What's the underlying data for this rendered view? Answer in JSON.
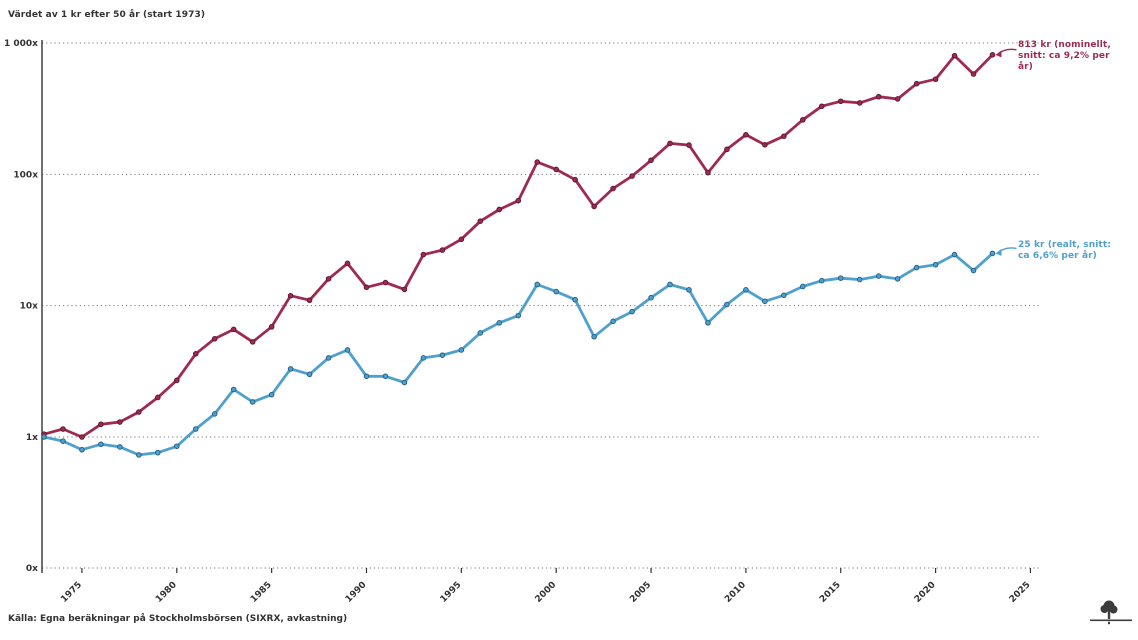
{
  "title": "Värdet av 1 kr efter 50 år (start 1973)",
  "source": "Källa: Egna beräkningar på Stockholmsbörsen (SIXRX, avkastning)",
  "colors": {
    "nominal": "#9e2b4f",
    "nominal_edge": "#5f1a30",
    "real": "#4fa0cd",
    "real_edge": "#27648a",
    "axis": "#333333",
    "grid": "#777777",
    "text": "#333333"
  },
  "annotations": {
    "nominal": {
      "lines": [
        "813 kr (nominellt,",
        "snitt: ca 9,2% per",
        "år)"
      ]
    },
    "real": {
      "lines": [
        "25 kr (realt, snitt:",
        "ca 6,6% per år)"
      ]
    }
  },
  "chart_data": {
    "type": "line",
    "title": "Värdet av 1 kr efter 50 år (start 1973)",
    "xlabel": "",
    "ylabel": "",
    "yscale": "log",
    "grid": "horizontal-dotted",
    "legend": "none",
    "xticks": [
      1975,
      1980,
      1985,
      1990,
      1995,
      2000,
      2005,
      2010,
      2015,
      2020,
      2025
    ],
    "yticks": [
      {
        "label": "1 000x",
        "value": 1000
      },
      {
        "label": "100x",
        "value": 100
      },
      {
        "label": "10x",
        "value": 10
      },
      {
        "label": "1x",
        "value": 1
      },
      {
        "label": "0x",
        "value": 0
      }
    ],
    "years": [
      1973,
      1974,
      1975,
      1976,
      1977,
      1978,
      1979,
      1980,
      1981,
      1982,
      1983,
      1984,
      1985,
      1986,
      1987,
      1988,
      1989,
      1990,
      1991,
      1992,
      1993,
      1994,
      1995,
      1996,
      1997,
      1998,
      1999,
      2000,
      2001,
      2002,
      2003,
      2004,
      2005,
      2006,
      2007,
      2008,
      2009,
      2010,
      2011,
      2012,
      2013,
      2014,
      2015,
      2016,
      2017,
      2018,
      2019,
      2020,
      2021,
      2022,
      2023
    ],
    "series": [
      {
        "name": "Nominellt (813 kr, ca 9,2% per år)",
        "color": "#9e2b4f",
        "edge": "#5f1a30",
        "values": [
          1.05,
          1.15,
          1.0,
          1.25,
          1.3,
          1.55,
          2.0,
          2.7,
          4.3,
          5.6,
          6.6,
          5.3,
          6.9,
          11.9,
          11.0,
          16.0,
          21.0,
          13.8,
          15.0,
          13.3,
          24.5,
          26.5,
          32.0,
          44.0,
          54.0,
          63.0,
          124.0,
          109.0,
          91.0,
          57.0,
          78.0,
          97.0,
          128.0,
          172.0,
          167.0,
          103.0,
          155.0,
          200.0,
          168.0,
          195.0,
          260.0,
          330.0,
          360.0,
          350.0,
          390.0,
          375.0,
          490.0,
          530.0,
          800.0,
          580.0,
          813.0
        ]
      },
      {
        "name": "Realt (25 kr, ca 6,6% per år)",
        "color": "#4fa0cd",
        "edge": "#27648a",
        "values": [
          1.0,
          0.93,
          0.8,
          0.88,
          0.84,
          0.73,
          0.76,
          0.85,
          1.15,
          1.5,
          2.3,
          1.85,
          2.1,
          3.3,
          3.0,
          4.0,
          4.6,
          2.9,
          2.9,
          2.6,
          4.0,
          4.2,
          4.6,
          6.2,
          7.4,
          8.4,
          14.5,
          12.8,
          11.1,
          5.8,
          7.6,
          9.0,
          11.5,
          14.5,
          13.2,
          7.4,
          10.2,
          13.2,
          10.8,
          12.0,
          14.0,
          15.5,
          16.2,
          15.8,
          16.8,
          16.0,
          19.5,
          20.5,
          24.5,
          18.5,
          25.0
        ]
      }
    ]
  }
}
